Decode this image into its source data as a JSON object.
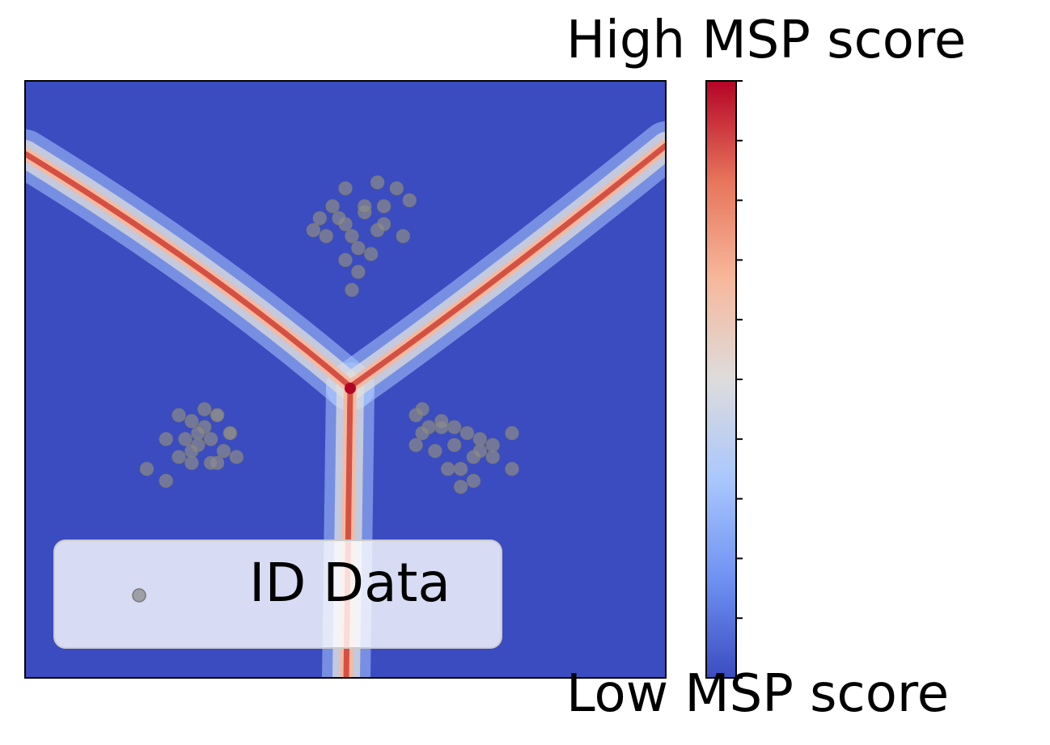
{
  "chart_data": {
    "type": "heatmap",
    "title": "",
    "xlabel": "",
    "ylabel": "",
    "xlim": [
      -5,
      5
    ],
    "ylim": [
      -5,
      5
    ],
    "colormap": "coolwarm",
    "colorbar": {
      "top_label": "High MSP score",
      "bottom_label": "Low MSP score",
      "tick_count": 11,
      "colors": [
        "#3b4cc0",
        "#6f92f3",
        "#aac7fd",
        "#dddcdc",
        "#f7b89c",
        "#e7745b",
        "#b40426"
      ]
    },
    "legend": {
      "entries": [
        "ID Data"
      ],
      "position": "lower-left",
      "marker_color": "#8c8c8c"
    },
    "heatmap_description": "Low MSP everywhere except along three decision boundaries meeting at a point",
    "clusters": [
      {
        "center": [
          0.2,
          2.3
        ],
        "points": [
          [
            -0.4,
            2.7
          ],
          [
            -0.2,
            2.9
          ],
          [
            0.0,
            2.6
          ],
          [
            0.3,
            2.8
          ],
          [
            0.5,
            2.5
          ],
          [
            0.1,
            2.4
          ],
          [
            -0.3,
            2.4
          ],
          [
            0.2,
            2.2
          ],
          [
            0.4,
            2.1
          ],
          [
            0.6,
            2.6
          ],
          [
            0.8,
            3.2
          ],
          [
            0.5,
            3.3
          ],
          [
            0.0,
            3.2
          ],
          [
            0.9,
            2.4
          ],
          [
            -0.5,
            2.5
          ],
          [
            0.2,
            1.8
          ],
          [
            0.1,
            1.5
          ],
          [
            0.3,
            2.9
          ],
          [
            -0.1,
            2.7
          ],
          [
            0.0,
            2.0
          ],
          [
            0.6,
            2.9
          ],
          [
            1.0,
            3.0
          ]
        ]
      },
      {
        "center": [
          -2.2,
          -0.9
        ],
        "points": [
          [
            -2.6,
            -0.6
          ],
          [
            -2.4,
            -0.7
          ],
          [
            -2.2,
            -0.8
          ],
          [
            -2.0,
            -0.6
          ],
          [
            -1.8,
            -0.9
          ],
          [
            -2.1,
            -1.0
          ],
          [
            -2.3,
            -1.1
          ],
          [
            -2.5,
            -1.0
          ],
          [
            -1.9,
            -1.2
          ],
          [
            -1.7,
            -1.3
          ],
          [
            -2.0,
            -1.4
          ],
          [
            -2.4,
            -1.4
          ],
          [
            -2.6,
            -1.3
          ],
          [
            -2.8,
            -1.0
          ],
          [
            -3.1,
            -1.5
          ],
          [
            -2.8,
            -1.7
          ],
          [
            -2.1,
            -1.4
          ],
          [
            -1.8,
            -0.9
          ],
          [
            -2.2,
            -0.5
          ],
          [
            -2.0,
            -0.6
          ],
          [
            -2.4,
            -1.2
          ],
          [
            -2.3,
            -0.9
          ]
        ]
      },
      {
        "center": [
          1.6,
          -1.0
        ],
        "points": [
          [
            1.1,
            -0.6
          ],
          [
            1.3,
            -0.8
          ],
          [
            1.5,
            -0.7
          ],
          [
            1.7,
            -0.8
          ],
          [
            1.9,
            -0.9
          ],
          [
            2.1,
            -1.0
          ],
          [
            2.3,
            -1.1
          ],
          [
            2.0,
            -1.3
          ],
          [
            1.8,
            -1.5
          ],
          [
            1.6,
            -1.5
          ],
          [
            1.4,
            -1.2
          ],
          [
            1.2,
            -0.9
          ],
          [
            1.1,
            -1.1
          ],
          [
            1.5,
            -0.8
          ],
          [
            2.3,
            -1.3
          ],
          [
            2.6,
            -1.5
          ],
          [
            2.6,
            -0.9
          ],
          [
            1.8,
            -1.8
          ],
          [
            2.0,
            -1.7
          ],
          [
            1.7,
            -1.1
          ],
          [
            2.1,
            -1.2
          ],
          [
            1.2,
            -0.5
          ]
        ]
      }
    ]
  }
}
